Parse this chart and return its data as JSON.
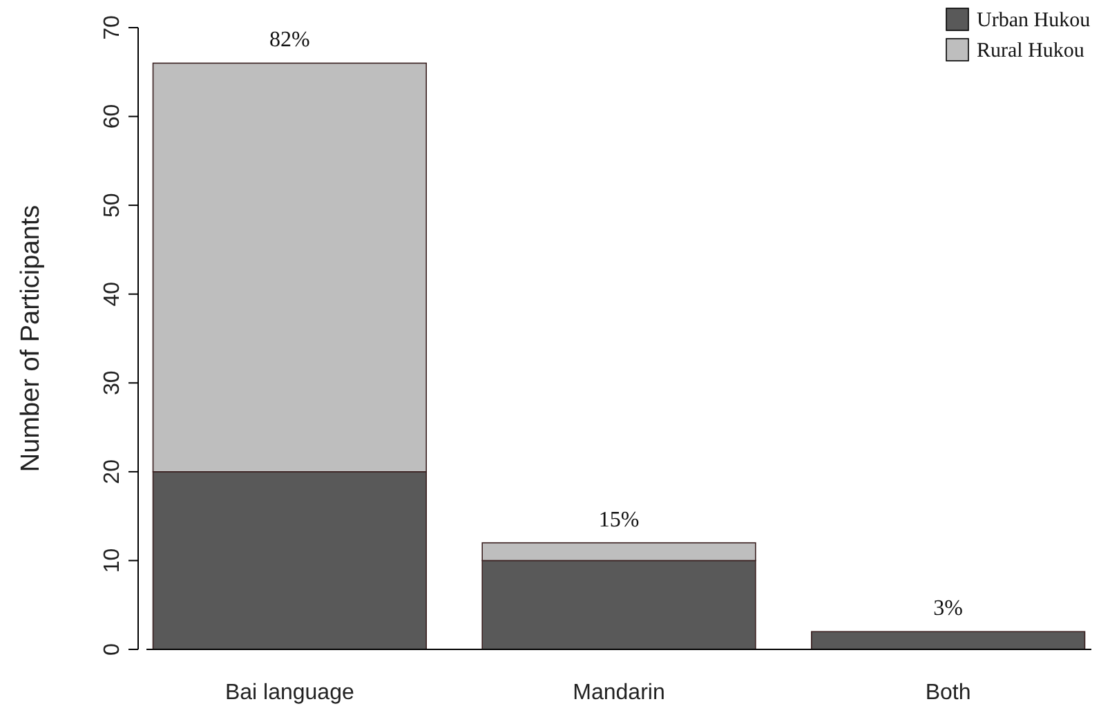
{
  "chart_data": {
    "type": "bar",
    "stacked": true,
    "ylabel": "Number of Participants",
    "categories": [
      "Bai language",
      "Mandarin",
      "Both"
    ],
    "series": [
      {
        "name": "Urban Hukou",
        "color": "#595959",
        "values": [
          20,
          10,
          2
        ]
      },
      {
        "name": "Rural Hukou",
        "color": "#bebebe",
        "values": [
          46,
          2,
          0
        ]
      }
    ],
    "ylim": [
      0,
      70
    ],
    "yticks": [
      0,
      10,
      20,
      30,
      40,
      50,
      60,
      70
    ],
    "annotations": [
      {
        "text": "82%",
        "x": "Bai language",
        "y": 66
      },
      {
        "text": "15%",
        "x": "Mandarin",
        "y": 12
      },
      {
        "text": "3%",
        "x": "Both",
        "y": 2
      }
    ],
    "legend": "top right",
    "grid": false
  }
}
